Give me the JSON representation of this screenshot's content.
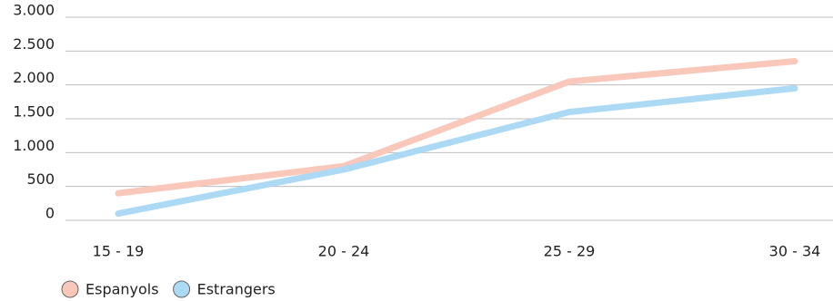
{
  "chart_data": {
    "type": "line",
    "categories": [
      "15 - 19",
      "20 - 24",
      "25 - 29",
      "30 - 34"
    ],
    "series": [
      {
        "name": "Espanyols",
        "color": "#f9c8bb",
        "values": [
          400,
          800,
          2050,
          2350
        ]
      },
      {
        "name": "Estrangers",
        "color": "#acd9f4",
        "values": [
          100,
          750,
          1600,
          1950
        ]
      }
    ],
    "ylim": [
      0,
      3000
    ],
    "yticks": [
      0,
      500,
      {
        "value": 1000,
        "label": "1.000"
      },
      {
        "value": 1500,
        "label": "1.500"
      },
      {
        "value": 2000,
        "label": "2.000"
      },
      {
        "value": 2500,
        "label": "2.500"
      },
      {
        "value": 3000,
        "label": "3.000"
      }
    ],
    "grid": true
  }
}
